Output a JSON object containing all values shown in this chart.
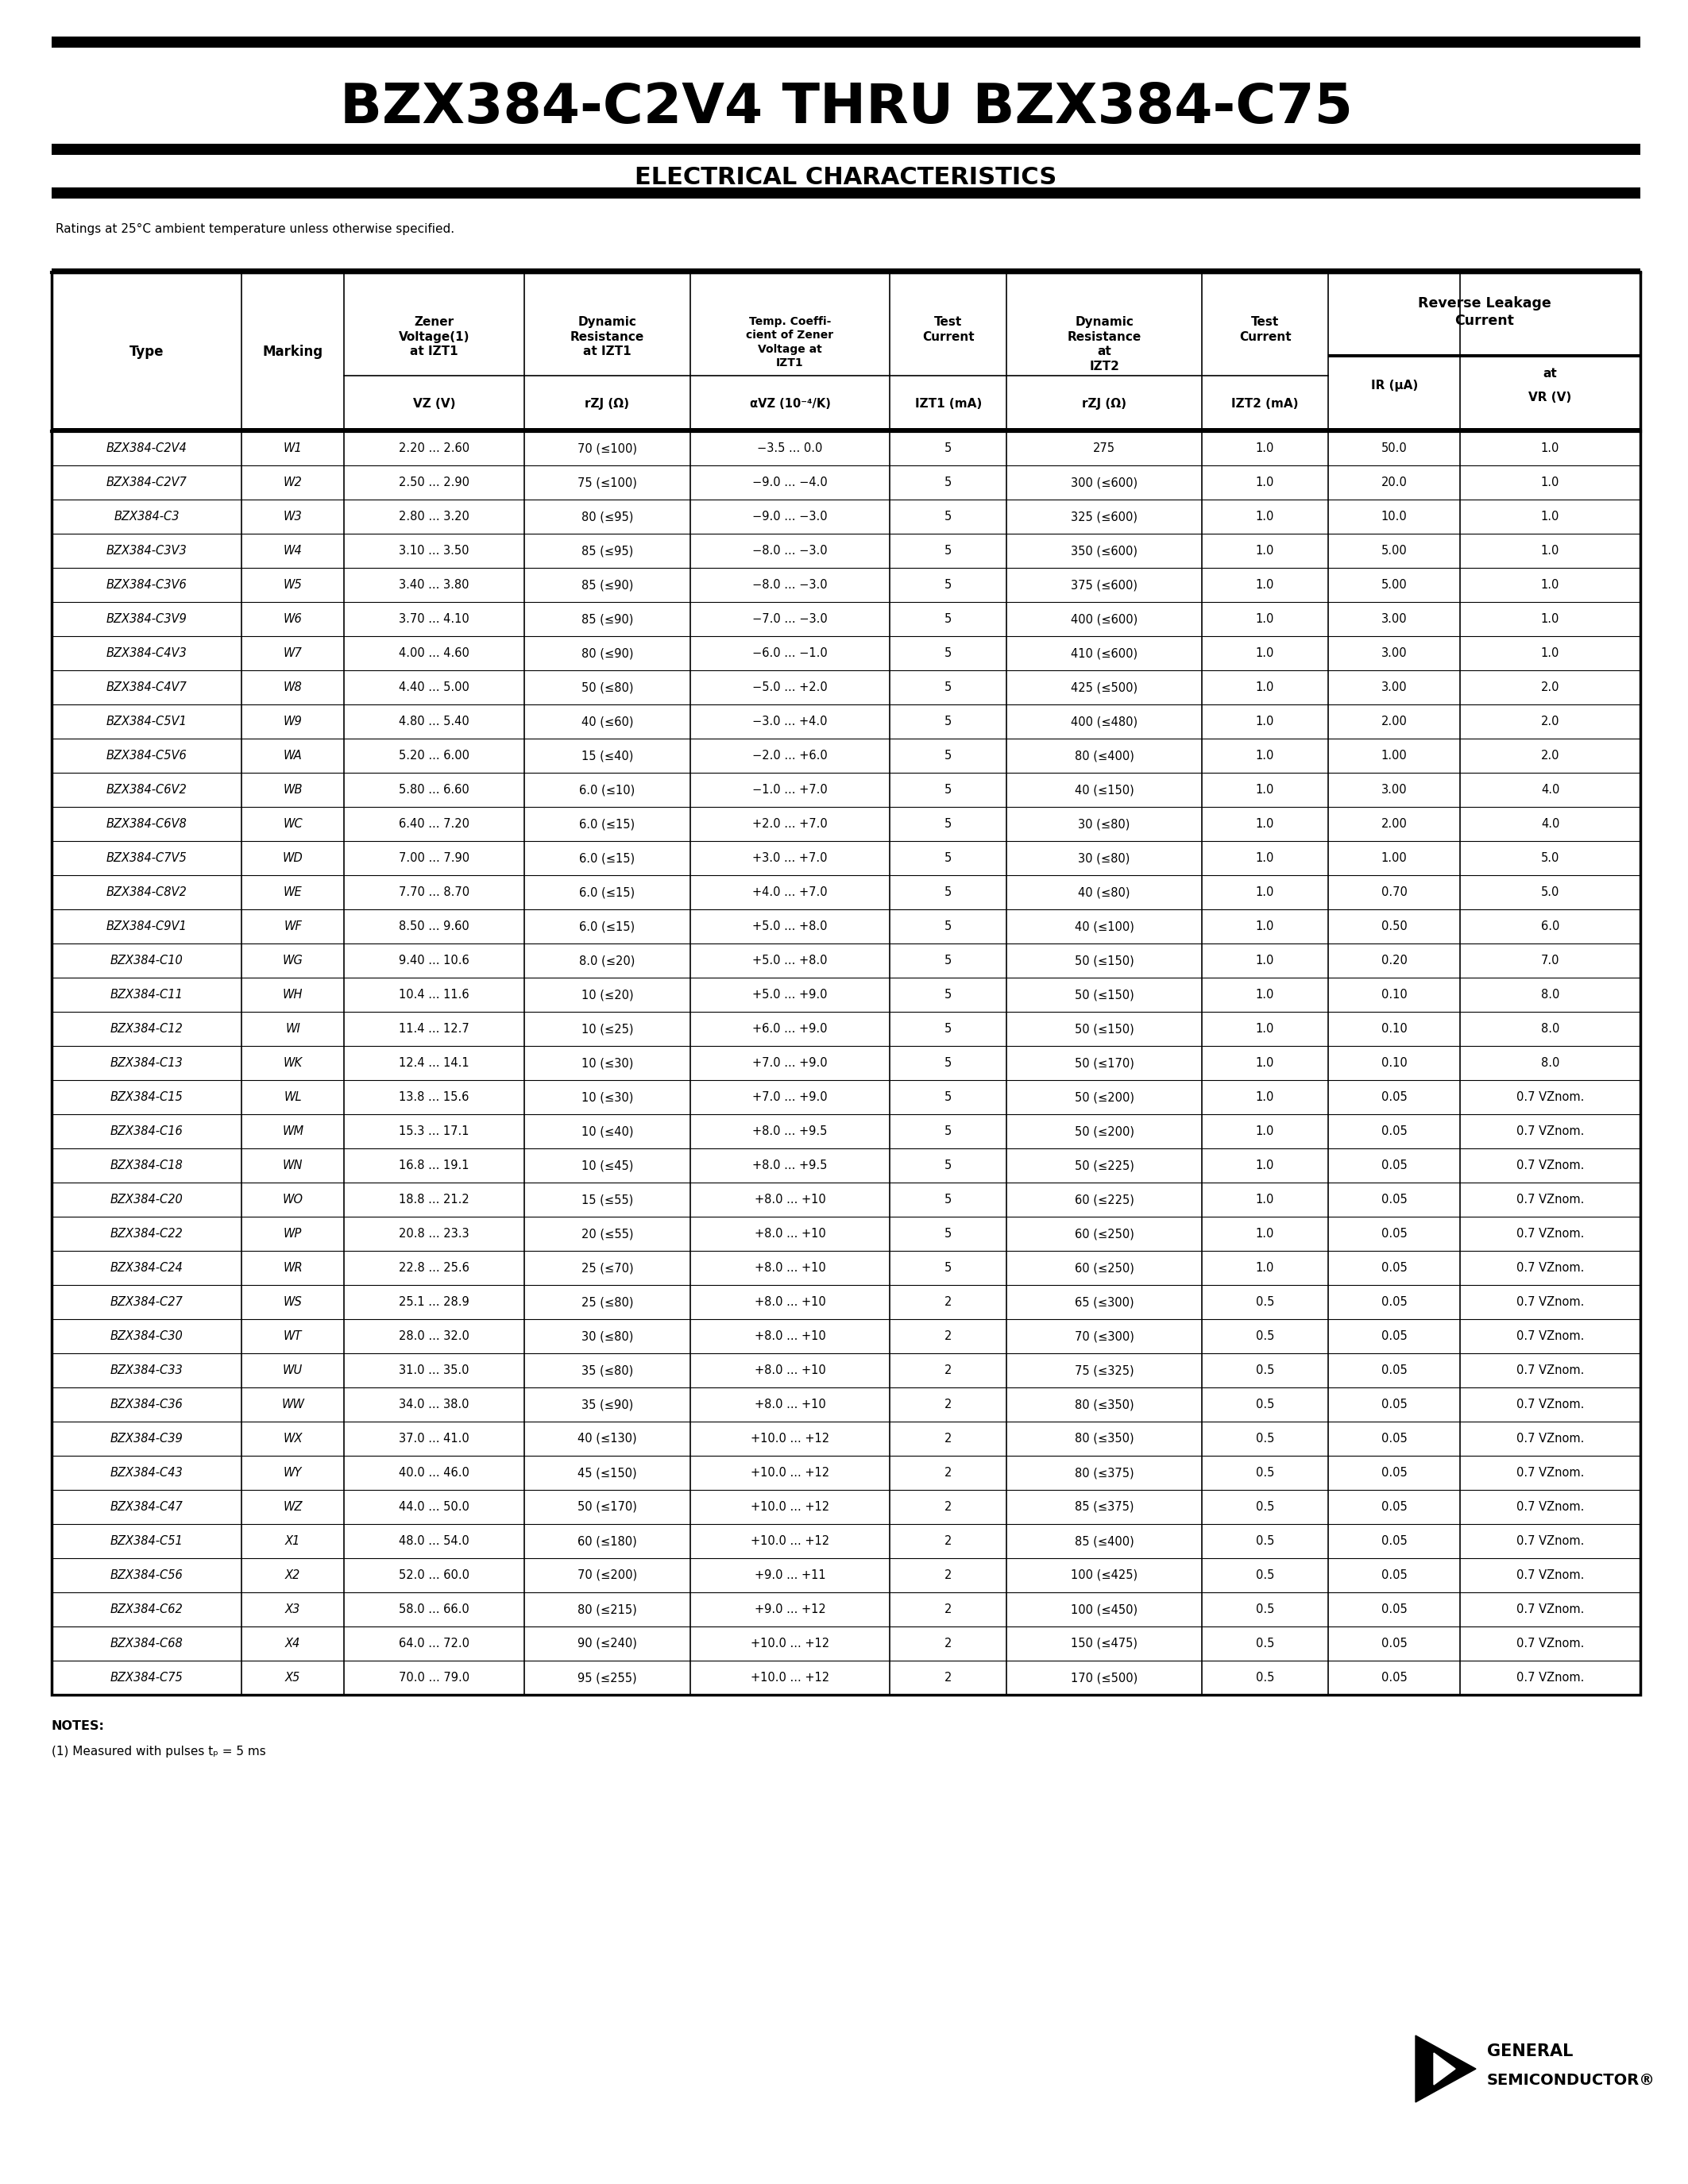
{
  "title": "BZX384-C2V4 THRU BZX384-C75",
  "subtitle": "ELECTRICAL CHARACTERISTICS",
  "ratings_note": "Ratings at 25°C ambient temperature unless otherwise specified.",
  "rows": [
    [
      "BZX384-C2V4",
      "W1",
      "2.20 ... 2.60",
      "70 (≤100)",
      "−3.5 ... 0.0",
      "5",
      "275",
      "1.0",
      "50.0",
      "1.0"
    ],
    [
      "BZX384-C2V7",
      "W2",
      "2.50 ... 2.90",
      "75 (≤100)",
      "−9.0 ... −4.0",
      "5",
      "300 (≤600)",
      "1.0",
      "20.0",
      "1.0"
    ],
    [
      "BZX384-C3",
      "W3",
      "2.80 ... 3.20",
      "80 (≤95)",
      "−9.0 ... −3.0",
      "5",
      "325 (≤600)",
      "1.0",
      "10.0",
      "1.0"
    ],
    [
      "BZX384-C3V3",
      "W4",
      "3.10 ... 3.50",
      "85 (≤95)",
      "−8.0 ... −3.0",
      "5",
      "350 (≤600)",
      "1.0",
      "5.00",
      "1.0"
    ],
    [
      "BZX384-C3V6",
      "W5",
      "3.40 ... 3.80",
      "85 (≤90)",
      "−8.0 ... −3.0",
      "5",
      "375 (≤600)",
      "1.0",
      "5.00",
      "1.0"
    ],
    [
      "BZX384-C3V9",
      "W6",
      "3.70 ... 4.10",
      "85 (≤90)",
      "−7.0 ... −3.0",
      "5",
      "400 (≤600)",
      "1.0",
      "3.00",
      "1.0"
    ],
    [
      "BZX384-C4V3",
      "W7",
      "4.00 ... 4.60",
      "80 (≤90)",
      "−6.0 ... −1.0",
      "5",
      "410 (≤600)",
      "1.0",
      "3.00",
      "1.0"
    ],
    [
      "BZX384-C4V7",
      "W8",
      "4.40 ... 5.00",
      "50 (≤80)",
      "−5.0 ... +2.0",
      "5",
      "425 (≤500)",
      "1.0",
      "3.00",
      "2.0"
    ],
    [
      "BZX384-C5V1",
      "W9",
      "4.80 ... 5.40",
      "40 (≤60)",
      "−3.0 ... +4.0",
      "5",
      "400 (≤480)",
      "1.0",
      "2.00",
      "2.0"
    ],
    [
      "BZX384-C5V6",
      "WA",
      "5.20 ... 6.00",
      "15 (≤40)",
      "−2.0 ... +6.0",
      "5",
      "80 (≤400)",
      "1.0",
      "1.00",
      "2.0"
    ],
    [
      "BZX384-C6V2",
      "WB",
      "5.80 ... 6.60",
      "6.0 (≤10)",
      "−1.0 ... +7.0",
      "5",
      "40 (≤150)",
      "1.0",
      "3.00",
      "4.0"
    ],
    [
      "BZX384-C6V8",
      "WC",
      "6.40 ... 7.20",
      "6.0 (≤15)",
      "+2.0 ... +7.0",
      "5",
      "30 (≤80)",
      "1.0",
      "2.00",
      "4.0"
    ],
    [
      "BZX384-C7V5",
      "WD",
      "7.00 ... 7.90",
      "6.0 (≤15)",
      "+3.0 ... +7.0",
      "5",
      "30 (≤80)",
      "1.0",
      "1.00",
      "5.0"
    ],
    [
      "BZX384-C8V2",
      "WE",
      "7.70 ... 8.70",
      "6.0 (≤15)",
      "+4.0 ... +7.0",
      "5",
      "40 (≤80)",
      "1.0",
      "0.70",
      "5.0"
    ],
    [
      "BZX384-C9V1",
      "WF",
      "8.50 ... 9.60",
      "6.0 (≤15)",
      "+5.0 ... +8.0",
      "5",
      "40 (≤100)",
      "1.0",
      "0.50",
      "6.0"
    ],
    [
      "BZX384-C10",
      "WG",
      "9.40 ... 10.6",
      "8.0 (≤20)",
      "+5.0 ... +8.0",
      "5",
      "50 (≤150)",
      "1.0",
      "0.20",
      "7.0"
    ],
    [
      "BZX384-C11",
      "WH",
      "10.4 ... 11.6",
      "10 (≤20)",
      "+5.0 ... +9.0",
      "5",
      "50 (≤150)",
      "1.0",
      "0.10",
      "8.0"
    ],
    [
      "BZX384-C12",
      "WI",
      "11.4 ... 12.7",
      "10 (≤25)",
      "+6.0 ... +9.0",
      "5",
      "50 (≤150)",
      "1.0",
      "0.10",
      "8.0"
    ],
    [
      "BZX384-C13",
      "WK",
      "12.4 ... 14.1",
      "10 (≤30)",
      "+7.0 ... +9.0",
      "5",
      "50 (≤170)",
      "1.0",
      "0.10",
      "8.0"
    ],
    [
      "BZX384-C15",
      "WL",
      "13.8 ... 15.6",
      "10 (≤30)",
      "+7.0 ... +9.0",
      "5",
      "50 (≤200)",
      "1.0",
      "0.05",
      "0.7 VZnom."
    ],
    [
      "BZX384-C16",
      "WM",
      "15.3 ... 17.1",
      "10 (≤40)",
      "+8.0 ... +9.5",
      "5",
      "50 (≤200)",
      "1.0",
      "0.05",
      "0.7 VZnom."
    ],
    [
      "BZX384-C18",
      "WN",
      "16.8 ... 19.1",
      "10 (≤45)",
      "+8.0 ... +9.5",
      "5",
      "50 (≤225)",
      "1.0",
      "0.05",
      "0.7 VZnom."
    ],
    [
      "BZX384-C20",
      "WO",
      "18.8 ... 21.2",
      "15 (≤55)",
      "+8.0 ... +10",
      "5",
      "60 (≤225)",
      "1.0",
      "0.05",
      "0.7 VZnom."
    ],
    [
      "BZX384-C22",
      "WP",
      "20.8 ... 23.3",
      "20 (≤55)",
      "+8.0 ... +10",
      "5",
      "60 (≤250)",
      "1.0",
      "0.05",
      "0.7 VZnom."
    ],
    [
      "BZX384-C24",
      "WR",
      "22.8 ... 25.6",
      "25 (≤70)",
      "+8.0 ... +10",
      "5",
      "60 (≤250)",
      "1.0",
      "0.05",
      "0.7 VZnom."
    ],
    [
      "BZX384-C27",
      "WS",
      "25.1 ... 28.9",
      "25 (≤80)",
      "+8.0 ... +10",
      "2",
      "65 (≤300)",
      "0.5",
      "0.05",
      "0.7 VZnom."
    ],
    [
      "BZX384-C30",
      "WT",
      "28.0 ... 32.0",
      "30 (≤80)",
      "+8.0 ... +10",
      "2",
      "70 (≤300)",
      "0.5",
      "0.05",
      "0.7 VZnom."
    ],
    [
      "BZX384-C33",
      "WU",
      "31.0 ... 35.0",
      "35 (≤80)",
      "+8.0 ... +10",
      "2",
      "75 (≤325)",
      "0.5",
      "0.05",
      "0.7 VZnom."
    ],
    [
      "BZX384-C36",
      "WW",
      "34.0 ... 38.0",
      "35 (≤90)",
      "+8.0 ... +10",
      "2",
      "80 (≤350)",
      "0.5",
      "0.05",
      "0.7 VZnom."
    ],
    [
      "BZX384-C39",
      "WX",
      "37.0 ... 41.0",
      "40 (≤130)",
      "+10.0 ... +12",
      "2",
      "80 (≤350)",
      "0.5",
      "0.05",
      "0.7 VZnom."
    ],
    [
      "BZX384-C43",
      "WY",
      "40.0 ... 46.0",
      "45 (≤150)",
      "+10.0 ... +12",
      "2",
      "80 (≤375)",
      "0.5",
      "0.05",
      "0.7 VZnom."
    ],
    [
      "BZX384-C47",
      "WZ",
      "44.0 ... 50.0",
      "50 (≤170)",
      "+10.0 ... +12",
      "2",
      "85 (≤375)",
      "0.5",
      "0.05",
      "0.7 VZnom."
    ],
    [
      "BZX384-C51",
      "X1",
      "48.0 ... 54.0",
      "60 (≤180)",
      "+10.0 ... +12",
      "2",
      "85 (≤400)",
      "0.5",
      "0.05",
      "0.7 VZnom."
    ],
    [
      "BZX384-C56",
      "X2",
      "52.0 ... 60.0",
      "70 (≤200)",
      "+9.0 ... +11",
      "2",
      "100 (≤425)",
      "0.5",
      "0.05",
      "0.7 VZnom."
    ],
    [
      "BZX384-C62",
      "X3",
      "58.0 ... 66.0",
      "80 (≤215)",
      "+9.0 ... +12",
      "2",
      "100 (≤450)",
      "0.5",
      "0.05",
      "0.7 VZnom."
    ],
    [
      "BZX384-C68",
      "X4",
      "64.0 ... 72.0",
      "90 (≤240)",
      "+10.0 ... +12",
      "2",
      "150 (≤475)",
      "0.5",
      "0.05",
      "0.7 VZnom."
    ],
    [
      "BZX384-C75",
      "X5",
      "70.0 ... 79.0",
      "95 (≤255)",
      "+10.0 ... +12",
      "2",
      "170 (≤500)",
      "0.5",
      "0.05",
      "0.7 VZnom."
    ]
  ],
  "notes_bold": "NOTES:",
  "notes_normal": "(1) Measured with pulses tₚ = 5 ms",
  "bg_color": "#ffffff"
}
